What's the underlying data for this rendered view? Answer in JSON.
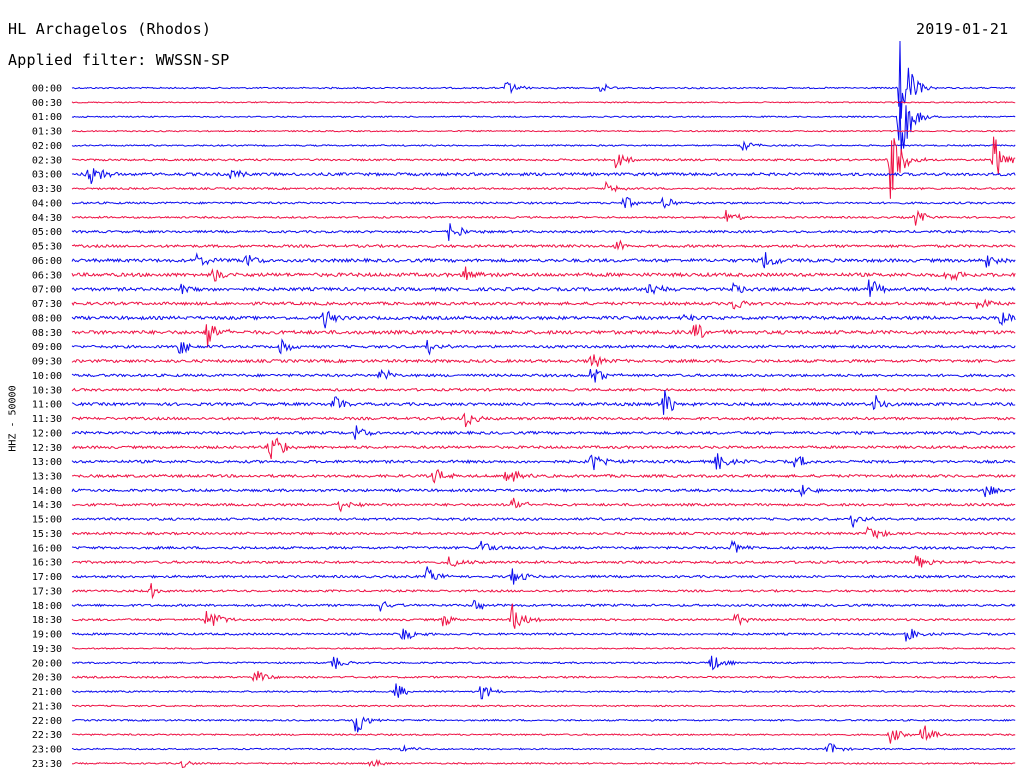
{
  "header": {
    "station": "HL Archagelos (Rhodos)",
    "date": "2019-01-21",
    "filter": "Applied filter: WWSSN-SP"
  },
  "axis": {
    "ylabel": "HHZ - 50000"
  },
  "colors": {
    "trace_a": "#0a0aee",
    "trace_b": "#ee1144",
    "background": "#ffffff"
  },
  "chart_data": {
    "type": "helicorder",
    "rows": [
      "00:00",
      "00:30",
      "01:00",
      "01:30",
      "02:00",
      "02:30",
      "03:00",
      "03:30",
      "04:00",
      "04:30",
      "05:00",
      "05:30",
      "06:00",
      "06:30",
      "07:00",
      "07:30",
      "08:00",
      "08:30",
      "09:00",
      "09:30",
      "10:00",
      "10:30",
      "11:00",
      "11:30",
      "12:00",
      "12:30",
      "13:00",
      "13:30",
      "14:00",
      "14:30",
      "15:00",
      "15:30",
      "16:00",
      "16:30",
      "17:00",
      "17:30",
      "18:00",
      "18:30",
      "19:00",
      "19:30",
      "20:00",
      "20:30",
      "21:00",
      "21:30",
      "22:00",
      "22:30",
      "23:00",
      "23:30"
    ],
    "row_minutes": 30,
    "row_color_pattern": [
      "trace_a",
      "trace_b"
    ],
    "noise_level": [
      0.22,
      0.18,
      0.2,
      0.2,
      0.22,
      0.3,
      0.45,
      0.28,
      0.3,
      0.28,
      0.35,
      0.4,
      0.5,
      0.55,
      0.5,
      0.45,
      0.5,
      0.55,
      0.4,
      0.45,
      0.4,
      0.38,
      0.45,
      0.4,
      0.42,
      0.4,
      0.42,
      0.42,
      0.4,
      0.38,
      0.38,
      0.36,
      0.38,
      0.38,
      0.36,
      0.32,
      0.35,
      0.32,
      0.32,
      0.2,
      0.25,
      0.28,
      0.25,
      0.22,
      0.25,
      0.24,
      0.22,
      0.22
    ],
    "events": [
      {
        "row": 0,
        "minute": 13.8,
        "amp": 1.0
      },
      {
        "row": 0,
        "minute": 16.8,
        "amp": 0.6
      },
      {
        "row": 0,
        "minute": 26.3,
        "amp": 6.0
      },
      {
        "row": 2,
        "minute": 26.3,
        "amp": 6.0
      },
      {
        "row": 4,
        "minute": 21.3,
        "amp": 0.7
      },
      {
        "row": 5,
        "minute": 17.3,
        "amp": 1.2
      },
      {
        "row": 5,
        "minute": 26.0,
        "amp": 5.0
      },
      {
        "row": 5,
        "minute": 29.3,
        "amp": 3.0
      },
      {
        "row": 6,
        "minute": 0.5,
        "amp": 2.0
      },
      {
        "row": 6,
        "minute": 5.0,
        "amp": 1.0
      },
      {
        "row": 7,
        "minute": 17.0,
        "amp": 0.9
      },
      {
        "row": 8,
        "minute": 17.5,
        "amp": 1.0
      },
      {
        "row": 8,
        "minute": 18.8,
        "amp": 0.8
      },
      {
        "row": 9,
        "minute": 20.8,
        "amp": 1.0
      },
      {
        "row": 9,
        "minute": 26.8,
        "amp": 1.0
      },
      {
        "row": 10,
        "minute": 12.0,
        "amp": 1.5
      },
      {
        "row": 11,
        "minute": 17.3,
        "amp": 0.8
      },
      {
        "row": 12,
        "minute": 4.0,
        "amp": 1.0
      },
      {
        "row": 12,
        "minute": 5.5,
        "amp": 1.0
      },
      {
        "row": 12,
        "minute": 22.0,
        "amp": 1.5
      },
      {
        "row": 12,
        "minute": 29.0,
        "amp": 1.0
      },
      {
        "row": 13,
        "minute": 4.5,
        "amp": 1.0
      },
      {
        "row": 13,
        "minute": 12.5,
        "amp": 1.0
      },
      {
        "row": 13,
        "minute": 27.8,
        "amp": 1.0
      },
      {
        "row": 14,
        "minute": 3.5,
        "amp": 1.0
      },
      {
        "row": 14,
        "minute": 18.3,
        "amp": 1.0
      },
      {
        "row": 14,
        "minute": 21.0,
        "amp": 1.0
      },
      {
        "row": 14,
        "minute": 25.3,
        "amp": 1.5
      },
      {
        "row": 15,
        "minute": 21.0,
        "amp": 1.0
      },
      {
        "row": 15,
        "minute": 28.8,
        "amp": 1.0
      },
      {
        "row": 16,
        "minute": 8.0,
        "amp": 1.3
      },
      {
        "row": 16,
        "minute": 19.5,
        "amp": 1.0
      },
      {
        "row": 16,
        "minute": 29.5,
        "amp": 1.0
      },
      {
        "row": 17,
        "minute": 4.3,
        "amp": 2.0
      },
      {
        "row": 17,
        "minute": 19.8,
        "amp": 1.3
      },
      {
        "row": 18,
        "minute": 3.4,
        "amp": 1.0
      },
      {
        "row": 18,
        "minute": 6.6,
        "amp": 1.0
      },
      {
        "row": 18,
        "minute": 11.3,
        "amp": 1.0
      },
      {
        "row": 19,
        "minute": 16.5,
        "amp": 1.0
      },
      {
        "row": 20,
        "minute": 9.8,
        "amp": 1.0
      },
      {
        "row": 20,
        "minute": 16.5,
        "amp": 1.3
      },
      {
        "row": 22,
        "minute": 8.3,
        "amp": 1.2
      },
      {
        "row": 22,
        "minute": 18.8,
        "amp": 2.0
      },
      {
        "row": 22,
        "minute": 25.5,
        "amp": 1.2
      },
      {
        "row": 23,
        "minute": 12.5,
        "amp": 1.2
      },
      {
        "row": 24,
        "minute": 9.0,
        "amp": 1.0
      },
      {
        "row": 25,
        "minute": 6.3,
        "amp": 2.5
      },
      {
        "row": 26,
        "minute": 16.5,
        "amp": 1.3
      },
      {
        "row": 26,
        "minute": 20.5,
        "amp": 1.2
      },
      {
        "row": 26,
        "minute": 23.0,
        "amp": 1.0
      },
      {
        "row": 27,
        "minute": 11.5,
        "amp": 1.2
      },
      {
        "row": 27,
        "minute": 13.8,
        "amp": 1.2
      },
      {
        "row": 28,
        "minute": 23.2,
        "amp": 1.0
      },
      {
        "row": 28,
        "minute": 29.0,
        "amp": 1.0
      },
      {
        "row": 29,
        "minute": 8.5,
        "amp": 1.0
      },
      {
        "row": 29,
        "minute": 14.0,
        "amp": 1.2
      },
      {
        "row": 30,
        "minute": 24.8,
        "amp": 1.0
      },
      {
        "row": 31,
        "minute": 25.3,
        "amp": 1.5
      },
      {
        "row": 32,
        "minute": 13.0,
        "amp": 1.0
      },
      {
        "row": 32,
        "minute": 21.0,
        "amp": 1.0
      },
      {
        "row": 33,
        "minute": 12.0,
        "amp": 1.0
      },
      {
        "row": 33,
        "minute": 26.8,
        "amp": 1.0
      },
      {
        "row": 34,
        "minute": 11.3,
        "amp": 1.2
      },
      {
        "row": 34,
        "minute": 14.0,
        "amp": 1.2
      },
      {
        "row": 35,
        "minute": 2.5,
        "amp": 1.0
      },
      {
        "row": 36,
        "minute": 9.8,
        "amp": 0.8
      },
      {
        "row": 36,
        "minute": 12.8,
        "amp": 1.0
      },
      {
        "row": 37,
        "minute": 4.3,
        "amp": 2.0
      },
      {
        "row": 37,
        "minute": 11.8,
        "amp": 1.0
      },
      {
        "row": 37,
        "minute": 14.0,
        "amp": 2.0
      },
      {
        "row": 37,
        "minute": 21.0,
        "amp": 1.0
      },
      {
        "row": 38,
        "minute": 10.5,
        "amp": 1.0
      },
      {
        "row": 38,
        "minute": 26.5,
        "amp": 1.0
      },
      {
        "row": 40,
        "minute": 8.3,
        "amp": 1.0
      },
      {
        "row": 40,
        "minute": 20.3,
        "amp": 1.3
      },
      {
        "row": 41,
        "minute": 5.8,
        "amp": 1.0
      },
      {
        "row": 42,
        "minute": 10.3,
        "amp": 1.0
      },
      {
        "row": 42,
        "minute": 13.0,
        "amp": 1.0
      },
      {
        "row": 44,
        "minute": 9.0,
        "amp": 2.0
      },
      {
        "row": 45,
        "minute": 26.0,
        "amp": 1.0
      },
      {
        "row": 45,
        "minute": 27.0,
        "amp": 1.5
      },
      {
        "row": 46,
        "minute": 10.5,
        "amp": 0.6
      },
      {
        "row": 46,
        "minute": 24.0,
        "amp": 1.0
      },
      {
        "row": 47,
        "minute": 3.5,
        "amp": 0.5
      },
      {
        "row": 47,
        "minute": 9.5,
        "amp": 0.6
      }
    ]
  }
}
